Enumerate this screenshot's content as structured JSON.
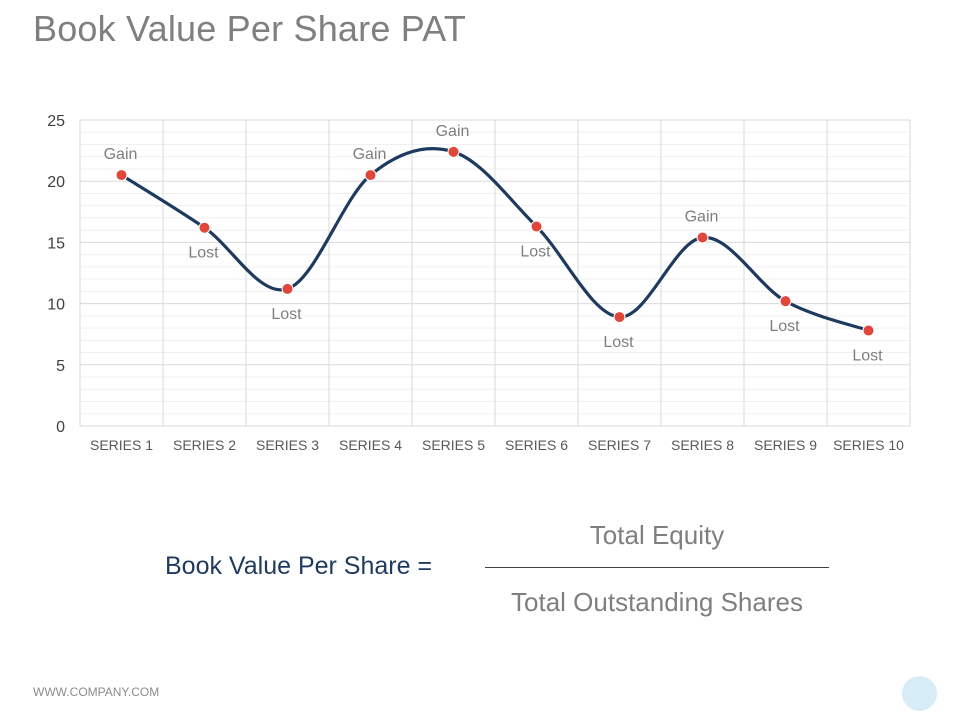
{
  "title": "Book Value Per Share PAT",
  "chart_data": {
    "type": "line",
    "categories": [
      "SERIES 1",
      "SERIES 2",
      "SERIES 3",
      "SERIES 4",
      "SERIES 5",
      "SERIES 6",
      "SERIES 7",
      "SERIES 8",
      "SERIES 9",
      "SERIES 10"
    ],
    "series": [
      {
        "values": [
          20.5,
          16.2,
          11.2,
          20.5,
          22.4,
          16.3,
          8.9,
          15.4,
          10.2,
          7.8
        ]
      }
    ],
    "point_labels": [
      "Gain",
      "Lost",
      "Lost",
      "Gain",
      "Gain",
      "Lost",
      "Lost",
      "Gain",
      "Lost",
      "Lost"
    ],
    "ylim": [
      0,
      25
    ],
    "yticks": [
      0,
      5,
      10,
      15,
      20,
      25
    ],
    "grid": true,
    "smooth": true,
    "colors": {
      "line": "#1f3a5f",
      "marker": "#e0463a",
      "grid_major": "#d9d9d9",
      "grid_minor": "#f0f0f0"
    }
  },
  "formula": {
    "left": "Book Value Per Share =",
    "numerator": "Total Equity",
    "denominator": "Total Outstanding Shares"
  },
  "footer": "WWW.COMPANY.COM"
}
